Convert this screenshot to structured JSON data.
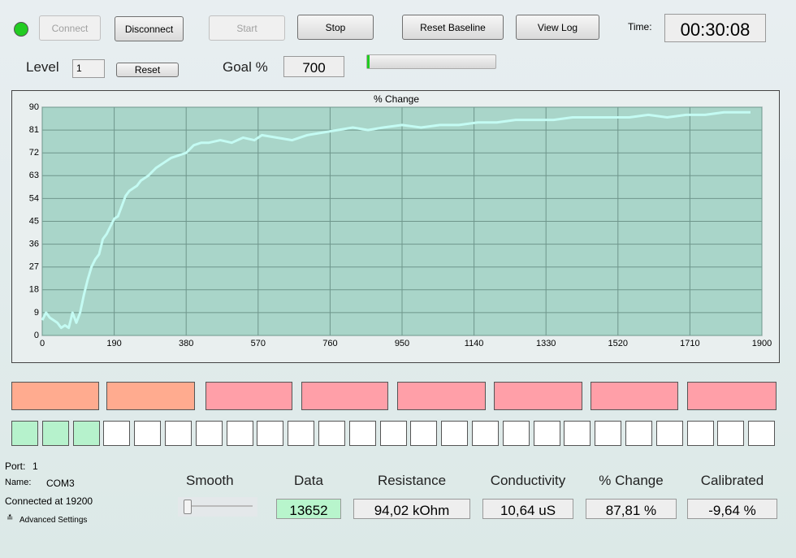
{
  "toolbar": {
    "buttons": [
      "Connect",
      "Disconnect",
      "Start",
      "Stop",
      "Reset Baseline",
      "View Log"
    ],
    "time_label": "Time:",
    "time": "00:30:08"
  },
  "level": {
    "label": "Level",
    "value": 1,
    "reset": "Reset"
  },
  "goal": {
    "label": "Goal %",
    "value": 700
  },
  "chart_data": {
    "type": "line",
    "title": "% Change",
    "color": "#c4fbf3",
    "x": [
      0,
      10,
      20,
      30,
      40,
      50,
      60,
      70,
      80,
      90,
      100,
      110,
      120,
      130,
      140,
      150,
      160,
      170,
      180,
      190,
      200,
      210,
      220,
      230,
      240,
      250,
      260,
      270,
      280,
      300,
      320,
      340,
      360,
      380,
      400,
      420,
      440,
      470,
      500,
      530,
      560,
      580,
      620,
      660,
      700,
      740,
      780,
      820,
      860,
      900,
      950,
      1000,
      1050,
      1100,
      1150,
      1200,
      1250,
      1300,
      1350,
      1400,
      1450,
      1500,
      1550,
      1600,
      1650,
      1700,
      1750,
      1800,
      1850,
      1870
    ],
    "values": [
      6,
      9,
      7,
      6,
      5,
      3,
      4,
      3,
      9,
      5,
      9,
      16,
      22,
      27,
      30,
      32,
      38,
      40,
      43,
      46,
      47,
      51,
      55,
      57,
      58,
      59,
      61,
      62,
      63,
      66,
      68,
      70,
      71,
      72,
      75,
      76,
      76,
      77,
      76,
      78,
      77,
      79,
      78,
      77,
      79,
      80,
      81,
      82,
      81,
      82,
      83,
      82,
      83,
      83,
      84,
      84,
      85,
      85,
      85,
      86,
      86,
      86,
      86,
      87,
      86,
      87,
      87,
      88,
      88,
      88
    ],
    "xlim": [
      0,
      1900
    ],
    "xticks": [
      0,
      190,
      380,
      570,
      760,
      950,
      1140,
      1330,
      1520,
      1710,
      1900
    ],
    "ylim": [
      0,
      90
    ],
    "yticks": [
      0,
      9,
      18,
      27,
      36,
      45,
      54,
      63,
      72,
      81,
      90
    ],
    "grid": true
  },
  "port": {
    "port_label": "Port:",
    "port": 1,
    "name_label": "Name:",
    "name": "COM3",
    "status": "Connected at 19200",
    "advanced": "Advanced Settings"
  },
  "smooth": "Smooth",
  "readouts": [
    {
      "label": "Data",
      "value": 13652
    },
    {
      "label": "Resistance",
      "value": "94,02 kOhm"
    },
    {
      "label": "Conductivity",
      "value": "10,64 uS"
    },
    {
      "label": "% Change",
      "value": "87,81 %"
    },
    {
      "label": "Calibrated",
      "value": "-9,64 %"
    }
  ]
}
